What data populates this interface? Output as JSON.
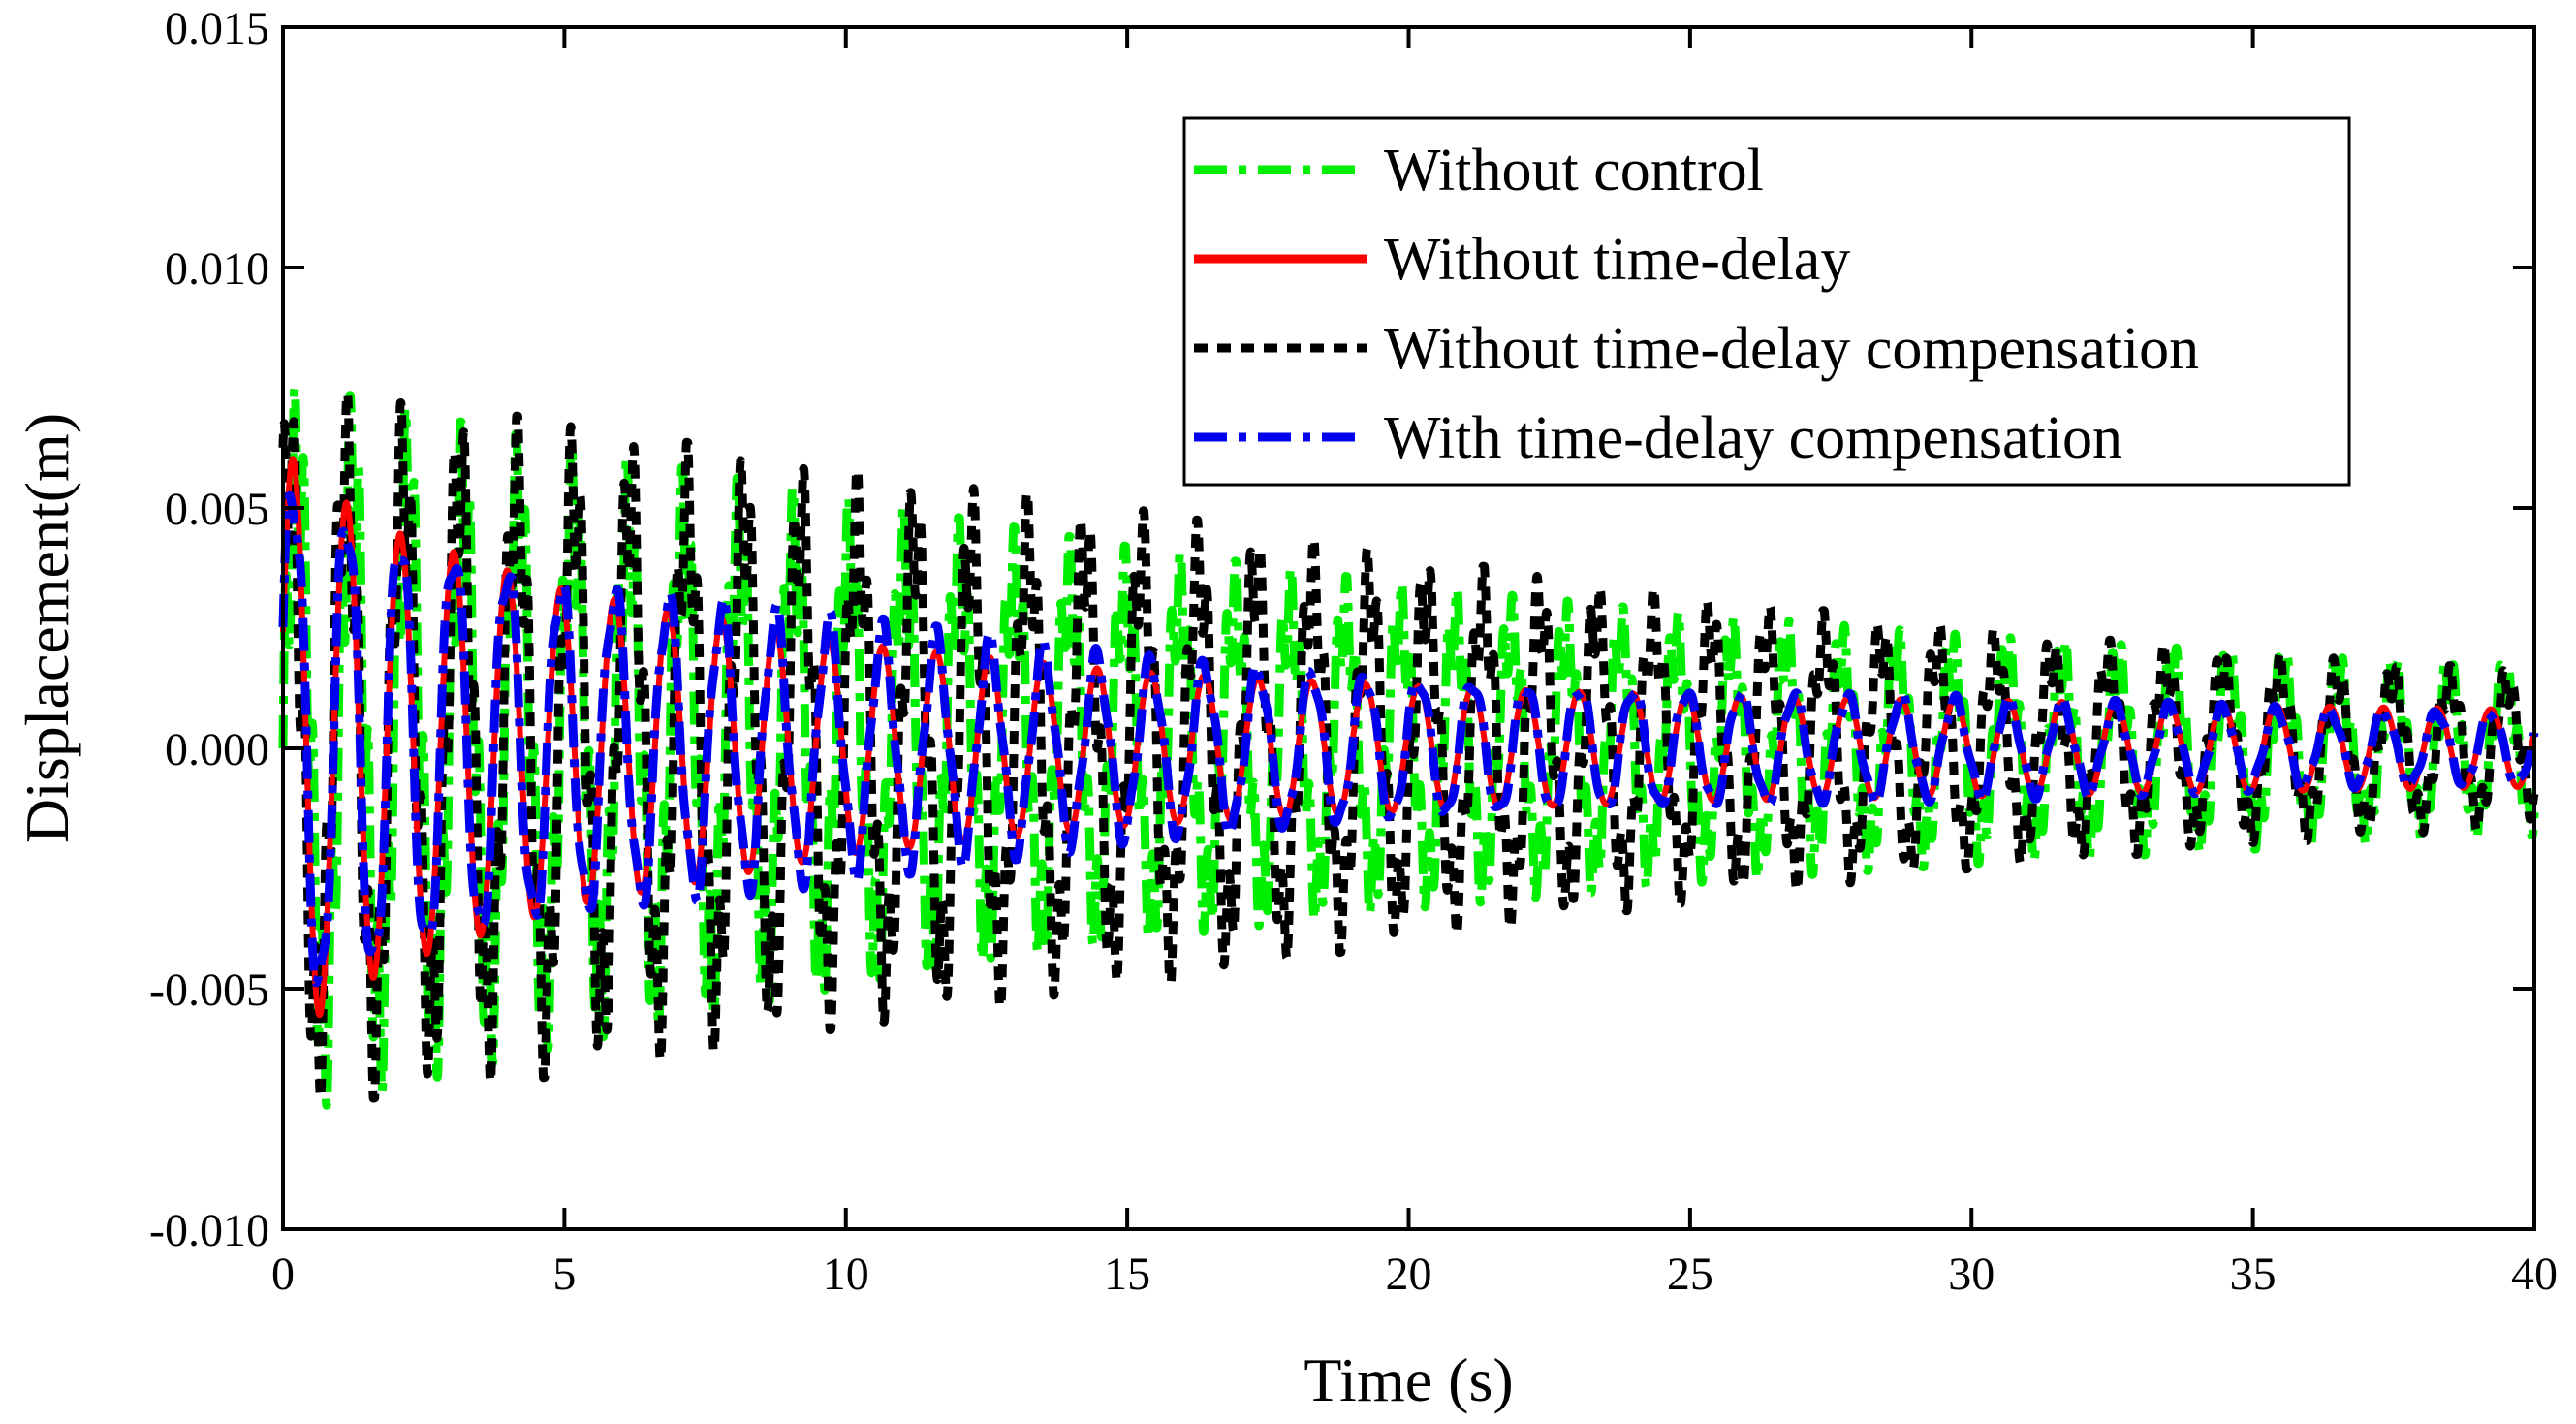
{
  "chart_data": {
    "type": "line",
    "title": "",
    "xlabel": "Time (s)",
    "ylabel": "Displacement(m)",
    "xlim": [
      0,
      40
    ],
    "ylim": [
      -0.01,
      0.015
    ],
    "x_ticks": [
      "0",
      "5",
      "10",
      "15",
      "20",
      "25",
      "30",
      "35",
      "40"
    ],
    "y_ticks": [
      "-0.010",
      "-0.005",
      "0.000",
      "0.005",
      "0.010",
      "0.015"
    ],
    "grid": false,
    "legend_position": "top-right",
    "series": [
      {
        "name": "Without control",
        "color": "#00ee00",
        "dash": "dash-dot",
        "time_s": [
          0,
          1,
          2,
          5,
          10,
          15,
          20,
          25,
          30,
          35,
          40
        ],
        "amplitude_m": [
          0.0075,
          0.0074,
          0.0071,
          0.0063,
          0.0052,
          0.0042,
          0.0034,
          0.0028,
          0.0024,
          0.0021,
          0.0018
        ]
      },
      {
        "name": "Without time-delay",
        "color": "#ff0000",
        "dash": "solid",
        "time_s": [
          0,
          1,
          2,
          5,
          10,
          15,
          20,
          25,
          30,
          35,
          40
        ],
        "amplitude_m": [
          0.0062,
          0.0052,
          0.0045,
          0.0033,
          0.0022,
          0.0016,
          0.0013,
          0.0011,
          0.001,
          0.0009,
          0.0008
        ]
      },
      {
        "name": "Without time-delay compensation",
        "color": "#000000",
        "dash": "dash",
        "time_s": [
          0,
          1,
          2,
          5,
          10,
          15,
          20,
          25,
          30,
          35,
          40
        ],
        "amplitude_m": [
          0.0075,
          0.0074,
          0.0072,
          0.0068,
          0.0058,
          0.005,
          0.004,
          0.0032,
          0.0025,
          0.002,
          0.0016
        ]
      },
      {
        "name": "With time-delay compensation",
        "color": "#0000ee",
        "dash": "dash-dot",
        "time_s": [
          0,
          1,
          2,
          5,
          10,
          15,
          20,
          25,
          30,
          35,
          40
        ],
        "amplitude_m": [
          0.0062,
          0.0055,
          0.005,
          0.0038,
          0.0028,
          0.002,
          0.0016,
          0.0013,
          0.0011,
          0.0009,
          0.0008
        ]
      }
    ]
  }
}
